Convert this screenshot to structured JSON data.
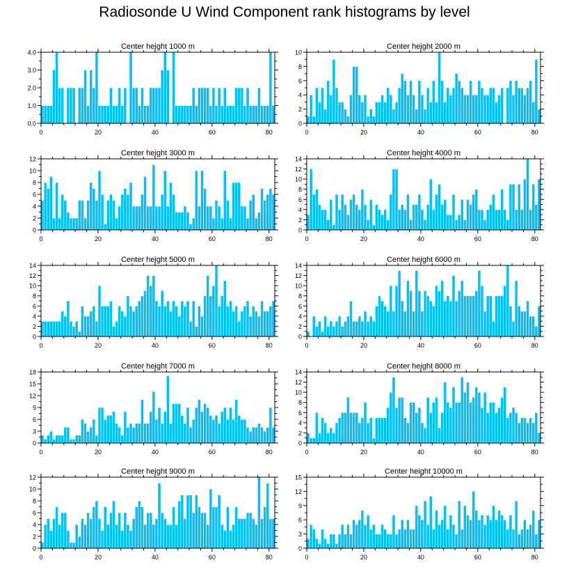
{
  "figure_title": "Radiosonde U Wind Component rank histograms by level",
  "colors": {
    "bar": "#00c0f8",
    "bar_edge": "#ffffff",
    "axis": "#000000"
  },
  "chart_data": [
    {
      "type": "bar",
      "title": "Center height 1000 m",
      "xlim": [
        0,
        82
      ],
      "ylim": [
        0,
        4
      ],
      "yticks": [
        0,
        1,
        2,
        3,
        4
      ],
      "ytick_labels": [
        "0.0",
        "1.0",
        "2.0",
        "3.0",
        "4.0"
      ],
      "xticks": [
        0,
        20,
        40,
        60,
        80
      ],
      "xtick_labels": [
        "0",
        "20",
        "40",
        "60",
        "80"
      ],
      "values": [
        1,
        1,
        1,
        1,
        3,
        4,
        2,
        2,
        0,
        2,
        2,
        2,
        0,
        2,
        2,
        3,
        1,
        3,
        2,
        4,
        1,
        1,
        1,
        1,
        2,
        1,
        1,
        2,
        1,
        2,
        0,
        4,
        2,
        2,
        1,
        2,
        1,
        1,
        2,
        2,
        2,
        2,
        3,
        4,
        3,
        0,
        4,
        1,
        1,
        1,
        1,
        1,
        1,
        2,
        1,
        2,
        2,
        2,
        2,
        1,
        2,
        1,
        2,
        1,
        2,
        1,
        1,
        1,
        2,
        2,
        2,
        1,
        2,
        1,
        1,
        1,
        2,
        1,
        1,
        1,
        4,
        1
      ]
    },
    {
      "type": "bar",
      "title": "Center height 2000 m",
      "xlim": [
        0,
        82
      ],
      "ylim": [
        0,
        10
      ],
      "yticks": [
        0,
        2,
        4,
        6,
        8,
        10
      ],
      "ytick_labels": [
        "0",
        "2",
        "4",
        "6",
        "8",
        "10"
      ],
      "xticks": [
        0,
        20,
        40,
        60,
        80
      ],
      "xtick_labels": [
        "0",
        "20",
        "40",
        "60",
        "80"
      ],
      "values": [
        1,
        4,
        1,
        5,
        3,
        5,
        2,
        6,
        4,
        9,
        5,
        3,
        3,
        2,
        1,
        4,
        8,
        8,
        4,
        3,
        4,
        1,
        2,
        1,
        3,
        3,
        4,
        3,
        5,
        4,
        2,
        3,
        5,
        7,
        6,
        4,
        6,
        4,
        2,
        6,
        4,
        2,
        5,
        3,
        6,
        3,
        10,
        6,
        3,
        5,
        4,
        5,
        7,
        6,
        5,
        4,
        4,
        6,
        4,
        4,
        6,
        5,
        4,
        4,
        5,
        5,
        3,
        4,
        5,
        0,
        5,
        6,
        4,
        6,
        5,
        5,
        4,
        5,
        6,
        3,
        9,
        2
      ]
    },
    {
      "type": "bar",
      "title": "Center height 3000 m",
      "xlim": [
        0,
        82
      ],
      "ylim": [
        0,
        12
      ],
      "yticks": [
        0,
        2,
        4,
        6,
        8,
        10,
        12
      ],
      "ytick_labels": [
        "0",
        "2",
        "4",
        "6",
        "8",
        "10",
        "12"
      ],
      "xticks": [
        0,
        20,
        40,
        60,
        80
      ],
      "xtick_labels": [
        "0",
        "20",
        "40",
        "60",
        "80"
      ],
      "values": [
        5,
        8,
        7,
        9,
        2,
        8,
        2,
        6,
        5,
        3,
        2,
        2,
        2,
        5,
        5,
        2,
        5,
        8,
        7,
        5,
        10,
        6,
        1,
        5,
        6,
        5,
        2,
        4,
        6,
        7,
        6,
        8,
        4,
        4,
        4,
        6,
        9,
        4,
        4,
        11,
        4,
        4,
        6,
        10,
        4,
        8,
        6,
        3,
        3,
        3,
        4,
        3,
        1,
        2,
        10,
        4,
        10,
        7,
        4,
        4,
        2,
        5,
        4,
        2,
        10,
        5,
        2,
        8,
        8,
        8,
        4,
        4,
        2,
        5,
        6,
        2,
        3,
        7,
        5,
        6,
        7,
        6
      ]
    },
    {
      "type": "bar",
      "title": "Center height 4000 m",
      "xlim": [
        0,
        82
      ],
      "ylim": [
        0,
        14
      ],
      "yticks": [
        0,
        2,
        4,
        6,
        8,
        10,
        12,
        14
      ],
      "ytick_labels": [
        "0",
        "2",
        "4",
        "6",
        "8",
        "10",
        "12",
        "14"
      ],
      "xticks": [
        0,
        20,
        40,
        60,
        80
      ],
      "xtick_labels": [
        "0",
        "20",
        "40",
        "60",
        "80"
      ],
      "values": [
        3,
        12,
        7,
        8,
        5,
        4,
        4,
        2,
        6,
        1,
        7,
        4,
        7,
        5,
        3,
        6,
        7,
        5,
        4,
        8,
        5,
        2,
        6,
        1,
        5,
        4,
        3,
        4,
        2,
        7,
        12,
        12,
        4,
        5,
        4,
        7,
        2,
        5,
        5,
        7,
        4,
        2,
        5,
        10,
        4,
        7,
        9,
        5,
        6,
        3,
        3,
        7,
        2,
        3,
        6,
        2,
        6,
        5,
        7,
        8,
        4,
        4,
        2,
        4,
        5,
        7,
        4,
        4,
        8,
        4,
        2,
        9,
        9,
        4,
        9,
        4,
        10,
        14,
        4,
        9,
        5,
        10
      ]
    },
    {
      "type": "bar",
      "title": "Center height 5000 m",
      "xlim": [
        0,
        82
      ],
      "ylim": [
        0,
        14
      ],
      "yticks": [
        0,
        2,
        4,
        6,
        8,
        10,
        12,
        14
      ],
      "ytick_labels": [
        "0",
        "2",
        "4",
        "6",
        "8",
        "10",
        "12",
        "14"
      ],
      "xticks": [
        0,
        20,
        40,
        60,
        80
      ],
      "xtick_labels": [
        "0",
        "20",
        "40",
        "60",
        "80"
      ],
      "values": [
        3,
        3,
        3,
        3,
        3,
        3,
        3,
        5,
        4,
        7,
        3,
        2,
        3,
        1,
        6,
        4,
        4,
        5,
        6,
        3,
        10,
        6,
        6,
        6,
        7,
        2,
        3,
        6,
        5,
        4,
        8,
        6,
        5,
        6,
        7,
        8,
        9,
        12,
        10,
        12,
        7,
        6,
        9,
        6,
        7,
        5,
        7,
        6,
        4,
        7,
        6,
        7,
        3,
        7,
        2,
        6,
        4,
        8,
        12,
        8,
        10,
        14,
        6,
        8,
        11,
        6,
        7,
        5,
        6,
        3,
        5,
        6,
        7,
        4,
        6,
        5,
        4,
        7,
        5,
        5,
        6,
        7
      ]
    },
    {
      "type": "bar",
      "title": "Center height 6000 m",
      "xlim": [
        0,
        82
      ],
      "ylim": [
        0,
        14
      ],
      "yticks": [
        0,
        2,
        4,
        6,
        8,
        10,
        12,
        14
      ],
      "ytick_labels": [
        "0",
        "2",
        "4",
        "6",
        "8",
        "10",
        "12",
        "14"
      ],
      "xticks": [
        0,
        20,
        40,
        60,
        80
      ],
      "xtick_labels": [
        "0",
        "20",
        "40",
        "60",
        "80"
      ],
      "values": [
        1,
        0,
        4,
        2,
        3,
        1,
        4,
        2,
        3,
        2,
        3,
        4,
        2,
        3,
        4,
        7,
        3,
        3,
        4,
        3,
        5,
        3,
        4,
        3,
        6,
        8,
        7,
        6,
        5,
        10,
        5,
        10,
        13,
        7,
        5,
        11,
        9,
        5,
        13,
        9,
        5,
        9,
        8,
        7,
        6,
        10,
        9,
        11,
        7,
        8,
        7,
        12,
        7,
        9,
        11,
        8,
        8,
        8,
        8,
        9,
        13,
        10,
        5,
        8,
        8,
        3,
        8,
        8,
        8,
        10,
        14,
        6,
        3,
        11,
        6,
        5,
        5,
        7,
        4,
        4,
        2,
        6
      ]
    },
    {
      "type": "bar",
      "title": "Center height 7000 m",
      "xlim": [
        0,
        82
      ],
      "ylim": [
        0,
        18
      ],
      "yticks": [
        0,
        3,
        6,
        9,
        12,
        15,
        18
      ],
      "ytick_labels": [
        "0",
        "3",
        "6",
        "9",
        "12",
        "15",
        "18"
      ],
      "xticks": [
        0,
        20,
        40,
        60,
        80
      ],
      "xtick_labels": [
        "0",
        "20",
        "40",
        "60",
        "80"
      ],
      "values": [
        2,
        1,
        2,
        3,
        1,
        2,
        2,
        2,
        4,
        4,
        1,
        1,
        2,
        2,
        6,
        5,
        3,
        4,
        6,
        2,
        9,
        9,
        6,
        7,
        7,
        8,
        5,
        4,
        2,
        8,
        4,
        5,
        4,
        5,
        5,
        11,
        5,
        5,
        8,
        13,
        6,
        9,
        5,
        8,
        17,
        5,
        10,
        10,
        10,
        7,
        5,
        9,
        4,
        6,
        9,
        11,
        8,
        10,
        9,
        7,
        6,
        7,
        5,
        8,
        9,
        6,
        9,
        6,
        11,
        7,
        6,
        6,
        4,
        3,
        4,
        4,
        5,
        4,
        3,
        4,
        9,
        4
      ]
    },
    {
      "type": "bar",
      "title": "Center height 8000 m",
      "xlim": [
        0,
        82
      ],
      "ylim": [
        0,
        14
      ],
      "yticks": [
        0,
        2,
        4,
        6,
        8,
        10,
        12,
        14
      ],
      "ytick_labels": [
        "0",
        "2",
        "4",
        "6",
        "8",
        "10",
        "12",
        "14"
      ],
      "xticks": [
        0,
        20,
        40,
        60,
        80
      ],
      "xtick_labels": [
        "0",
        "20",
        "40",
        "60",
        "80"
      ],
      "values": [
        2,
        1,
        1,
        6,
        2,
        5,
        4,
        2,
        3,
        2,
        4,
        5,
        6,
        6,
        9,
        6,
        6,
        6,
        4,
        5,
        8,
        4,
        5,
        1,
        5,
        5,
        5,
        5,
        7,
        10,
        13,
        7,
        9,
        9,
        5,
        4,
        8,
        8,
        6,
        7,
        4,
        3,
        9,
        6,
        8,
        9,
        3,
        6,
        12,
        8,
        7,
        11,
        8,
        8,
        13,
        10,
        12,
        8,
        9,
        11,
        10,
        7,
        10,
        6,
        8,
        8,
        6,
        7,
        9,
        11,
        5,
        6,
        7,
        6,
        4,
        5,
        5,
        4,
        5,
        4,
        6,
        2
      ]
    },
    {
      "type": "bar",
      "title": "Center height 9000 m",
      "xlim": [
        0,
        82
      ],
      "ylim": [
        0,
        12
      ],
      "yticks": [
        0,
        2,
        4,
        6,
        8,
        10,
        12
      ],
      "ytick_labels": [
        "0",
        "2",
        "4",
        "6",
        "8",
        "10",
        "12"
      ],
      "xticks": [
        0,
        20,
        40,
        60,
        80
      ],
      "xtick_labels": [
        "0",
        "20",
        "40",
        "60",
        "80"
      ],
      "values": [
        1,
        4,
        5,
        3,
        5,
        7,
        4,
        6,
        6,
        3,
        1,
        1,
        4,
        2,
        5,
        4,
        6,
        5,
        7,
        8,
        5,
        3,
        7,
        4,
        6,
        8,
        4,
        6,
        3,
        6,
        4,
        3,
        5,
        7,
        8,
        7,
        4,
        6,
        6,
        4,
        5,
        11,
        6,
        5,
        4,
        4,
        7,
        4,
        8,
        9,
        5,
        9,
        9,
        6,
        9,
        7,
        6,
        6,
        4,
        10,
        7,
        7,
        9,
        4,
        3,
        7,
        3,
        4,
        7,
        5,
        5,
        5,
        6,
        6,
        5,
        4,
        12,
        5,
        7,
        11,
        5,
        5
      ]
    },
    {
      "type": "bar",
      "title": "Center height 10000 m",
      "xlim": [
        0,
        82
      ],
      "ylim": [
        0,
        15
      ],
      "yticks": [
        0,
        3,
        6,
        9,
        12,
        15
      ],
      "ytick_labels": [
        "0",
        "3",
        "6",
        "9",
        "12",
        "15"
      ],
      "xticks": [
        0,
        20,
        40,
        60,
        80
      ],
      "xtick_labels": [
        "0",
        "20",
        "40",
        "60",
        "80"
      ],
      "values": [
        2,
        5,
        4,
        2,
        1,
        4,
        2,
        1,
        3,
        3,
        1,
        3,
        5,
        3,
        5,
        3,
        6,
        5,
        6,
        8,
        5,
        7,
        4,
        5,
        3,
        3,
        5,
        4,
        3,
        3,
        7,
        3,
        4,
        6,
        4,
        6,
        4,
        4,
        9,
        7,
        6,
        10,
        5,
        11,
        4,
        8,
        5,
        6,
        9,
        4,
        7,
        5,
        3,
        10,
        4,
        9,
        7,
        6,
        12,
        8,
        6,
        7,
        5,
        7,
        6,
        9,
        6,
        8,
        7,
        6,
        4,
        7,
        4,
        10,
        3,
        4,
        6,
        4,
        5,
        8,
        3,
        6
      ]
    }
  ]
}
